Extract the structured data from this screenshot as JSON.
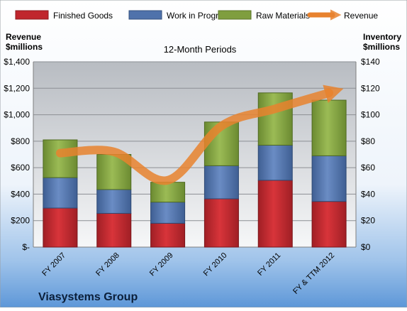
{
  "chart_data": {
    "type": "bar",
    "stacked": true,
    "title": "12-Month Periods",
    "company": "Viasystems Group",
    "left_axis_label": [
      "Revenue",
      "$millions"
    ],
    "right_axis_label": [
      "Inventory",
      "$millions"
    ],
    "categories": [
      "FY 2007",
      "FY 2008",
      "FY 2009",
      "FY 2010",
      "FY 2011",
      "FY & TTM 2012"
    ],
    "left_ticks": [
      "$-",
      "$200",
      "$400",
      "$600",
      "$800",
      "$1,000",
      "$1,200",
      "$1,400"
    ],
    "right_ticks": [
      "$0",
      "$20",
      "$40",
      "$60",
      "$80",
      "$100",
      "$120",
      "$140"
    ],
    "ylim_left": [
      0,
      1400
    ],
    "ylim_right": [
      0,
      140
    ],
    "series": [
      {
        "name": "Finished Goods",
        "color": "#c0262d",
        "axis": "right",
        "values": [
          29.5,
          25.5,
          18,
          36.5,
          50.5,
          34.5
        ]
      },
      {
        "name": "Work in Progress",
        "color": "#4f72ab",
        "axis": "right",
        "values": [
          23,
          18,
          16,
          25,
          26.5,
          34.5
        ]
      },
      {
        "name": "Raw Materials",
        "color": "#7f9e3f",
        "axis": "right",
        "values": [
          28.5,
          26.5,
          15,
          33,
          39.5,
          42
        ]
      }
    ],
    "line_series": {
      "name": "Revenue",
      "color": "#e8822e",
      "axis": "left",
      "values": [
        710,
        720,
        505,
        915,
        1045,
        1165
      ]
    },
    "legend_position": "top",
    "grid": true
  }
}
